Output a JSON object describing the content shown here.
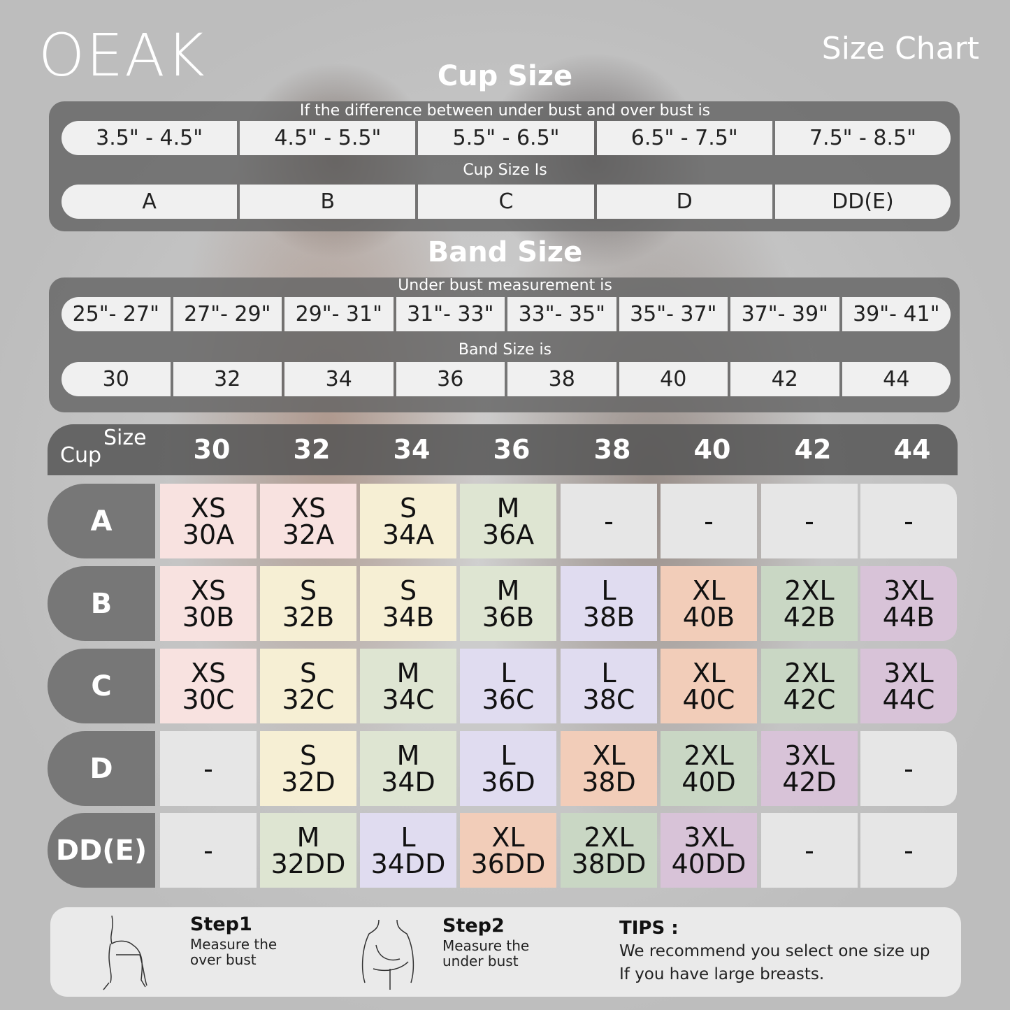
{
  "brand": "OEAK",
  "title": "Size Chart",
  "cup_section": {
    "heading": "Cup Size",
    "caption1": "If the  difference between under bust and over bust is",
    "differences": [
      "3.5\" -  4.5\"",
      "4.5\" -  5.5\"",
      "5.5\" -  6.5\"",
      "6.5\" -  7.5\"",
      "7.5\" -  8.5\""
    ],
    "caption2": "Cup Size Is",
    "cups": [
      "A",
      "B",
      "C",
      "D",
      "DD(E)"
    ]
  },
  "band_section": {
    "heading": "Band Size",
    "caption1": "Under bust measurement is",
    "measurements": [
      "25\"- 27\"",
      "27\"- 29\"",
      "29\"- 31\"",
      "31\"- 33\"",
      "33\"- 35\"",
      "35\"- 37\"",
      "37\"- 39\"",
      "39\"- 41\""
    ],
    "caption2": "Band Size is",
    "bands": [
      "30",
      "32",
      "34",
      "36",
      "38",
      "40",
      "42",
      "44"
    ]
  },
  "table": {
    "corner_size": "Size",
    "corner_cup": "Cup",
    "columns": [
      "30",
      "32",
      "34",
      "36",
      "38",
      "40",
      "42",
      "44"
    ],
    "rows": [
      {
        "cup": "A",
        "cells": [
          [
            "XS",
            "30A"
          ],
          [
            "XS",
            "32A"
          ],
          [
            "S",
            "34A"
          ],
          [
            "M",
            "36A"
          ],
          [
            "-"
          ],
          [
            "-"
          ],
          [
            "-"
          ],
          [
            "-"
          ]
        ]
      },
      {
        "cup": "B",
        "cells": [
          [
            "XS",
            "30B"
          ],
          [
            "S",
            "32B"
          ],
          [
            "S",
            "34B"
          ],
          [
            "M",
            "36B"
          ],
          [
            "L",
            "38B"
          ],
          [
            "XL",
            "40B"
          ],
          [
            "2XL",
            "42B"
          ],
          [
            "3XL",
            "44B"
          ]
        ]
      },
      {
        "cup": "C",
        "cells": [
          [
            "XS",
            "30C"
          ],
          [
            "S",
            "32C"
          ],
          [
            "M",
            "34C"
          ],
          [
            "L",
            "36C"
          ],
          [
            "L",
            "38C"
          ],
          [
            "XL",
            "40C"
          ],
          [
            "2XL",
            "42C"
          ],
          [
            "3XL",
            "44C"
          ]
        ]
      },
      {
        "cup": "D",
        "cells": [
          [
            "-"
          ],
          [
            "S",
            "32D"
          ],
          [
            "M",
            "34D"
          ],
          [
            "L",
            "36D"
          ],
          [
            "XL",
            "38D"
          ],
          [
            "2XL",
            "40D"
          ],
          [
            "3XL",
            "42D"
          ],
          [
            "-"
          ]
        ]
      },
      {
        "cup": "DD(E)",
        "cells": [
          [
            "-"
          ],
          [
            "M",
            "32DD"
          ],
          [
            "L",
            "34DD"
          ],
          [
            "XL",
            "36DD"
          ],
          [
            "2XL",
            "38DD"
          ],
          [
            "3XL",
            "40DD"
          ],
          [
            "-"
          ],
          [
            "-"
          ]
        ]
      }
    ]
  },
  "size_colors": {
    "XS": "#f8e2e0",
    "S": "#f6efd4",
    "M": "#dee5d2",
    "L": "#e0dcf0",
    "XL": "#f2cdb9",
    "2XL": "#c9d7c4",
    "3XL": "#d8c3d8",
    "-": "#e6e6e6"
  },
  "steps": [
    {
      "title": "Step1",
      "line1": "Measure the",
      "line2": "over bust",
      "icon": "overbust-measure-icon"
    },
    {
      "title": "Step2",
      "line1": "Measure the",
      "line2": "under bust",
      "icon": "underbust-measure-icon"
    }
  ],
  "tips": {
    "title": "TIPS :",
    "line1": "We recommend you select one size up",
    "line2": "If you have large breasts."
  }
}
